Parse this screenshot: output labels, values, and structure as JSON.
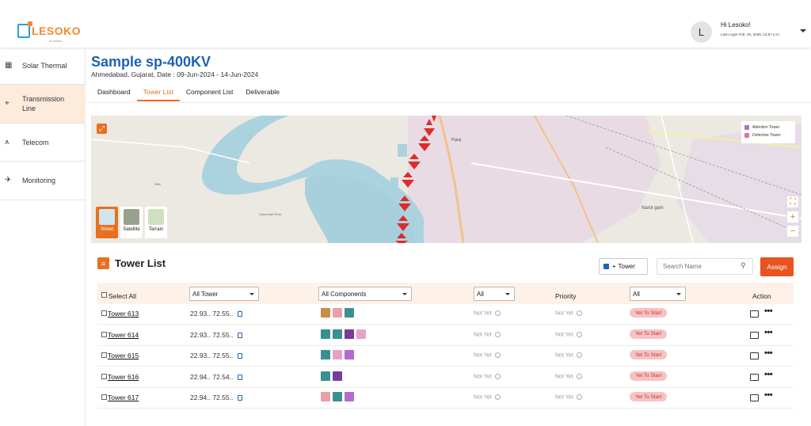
{
  "header": {
    "logo_text": "LESOKO",
    "logo_sub": "A Lesoko",
    "avatar_letter": "L",
    "greeting": "Hi Lesoko!",
    "last_login": "Last Login Feb. 20, 2026, 12:57 p.m."
  },
  "sidebar": {
    "items": [
      {
        "label": "Solar Thermal",
        "icon": "solar-panel-icon"
      },
      {
        "label": "Transmission Line",
        "icon": "tower-icon"
      },
      {
        "label": "Telecom",
        "icon": "antenna-icon"
      },
      {
        "label": "Monitoring",
        "icon": "drone-icon"
      }
    ]
  },
  "page": {
    "title": "Sample sp-400KV",
    "subtitle": "Ahmedabad, Gujarat, Date : 09-Jun-2024 - 14-Jun-2024",
    "tabs": [
      "Dashboard",
      "Tower List",
      "Component List",
      "Deliverable"
    ],
    "active_tab": "Tower List"
  },
  "map": {
    "legend": [
      "Attention Tower",
      "Defective Tower"
    ],
    "legend_colors": [
      "#b46bd0",
      "#e8708a"
    ],
    "labels": [
      "Piplaj",
      "Narol gam",
      "SH4",
      "Sabarmati River"
    ],
    "zoom_in": "+",
    "zoom_out": "−",
    "layers": [
      "Street",
      "Satellite",
      "Terrain"
    ],
    "active_layer": "Street"
  },
  "tower_list": {
    "title": "Tower List",
    "filter_label": "Tower",
    "search_placeholder": "Search Name",
    "assign_label": "Assign",
    "headers": {
      "select_all": "Select All",
      "tower_dd": "All Tower",
      "components_dd": "All Components",
      "status_dd": "All",
      "priority": "Priority",
      "state_dd": "All",
      "action": "Action"
    },
    "rows": [
      {
        "name": "Tower 613",
        "coord": "22.93.. 72.55..",
        "status": "Not Yet",
        "priority": "Not Yet",
        "state": "Yet To Start",
        "components": [
          "#c98a4a",
          "#e8a0a8",
          "#3a8f8f"
        ]
      },
      {
        "name": "Tower 614",
        "coord": "22.93.. 72.55..",
        "status": "Not Yet",
        "priority": "Not Yet",
        "state": "Yet To Start",
        "components": [
          "#3a8f8f",
          "#3a8f8f",
          "#7a3aa0",
          "#e8a0c8"
        ]
      },
      {
        "name": "Tower 615",
        "coord": "22.93.. 72.55..",
        "status": "Not Yet",
        "priority": "Not Yet",
        "state": "Yet To Start",
        "components": [
          "#3a8f8f",
          "#e8a0c8",
          "#b46bd0"
        ]
      },
      {
        "name": "Tower 616",
        "coord": "22.94.. 72.54..",
        "status": "Not Yet",
        "priority": "Not Yet",
        "state": "Yet To Start",
        "components": [
          "#3a8f8f",
          "#7a3aa0"
        ]
      },
      {
        "name": "Tower 617",
        "coord": "22.94.. 72.55..",
        "status": "Not Yet",
        "priority": "Not Yet",
        "state": "Yet To Start",
        "components": [
          "#e8a0a8",
          "#3a8f8f",
          "#b46bd0"
        ]
      }
    ]
  }
}
